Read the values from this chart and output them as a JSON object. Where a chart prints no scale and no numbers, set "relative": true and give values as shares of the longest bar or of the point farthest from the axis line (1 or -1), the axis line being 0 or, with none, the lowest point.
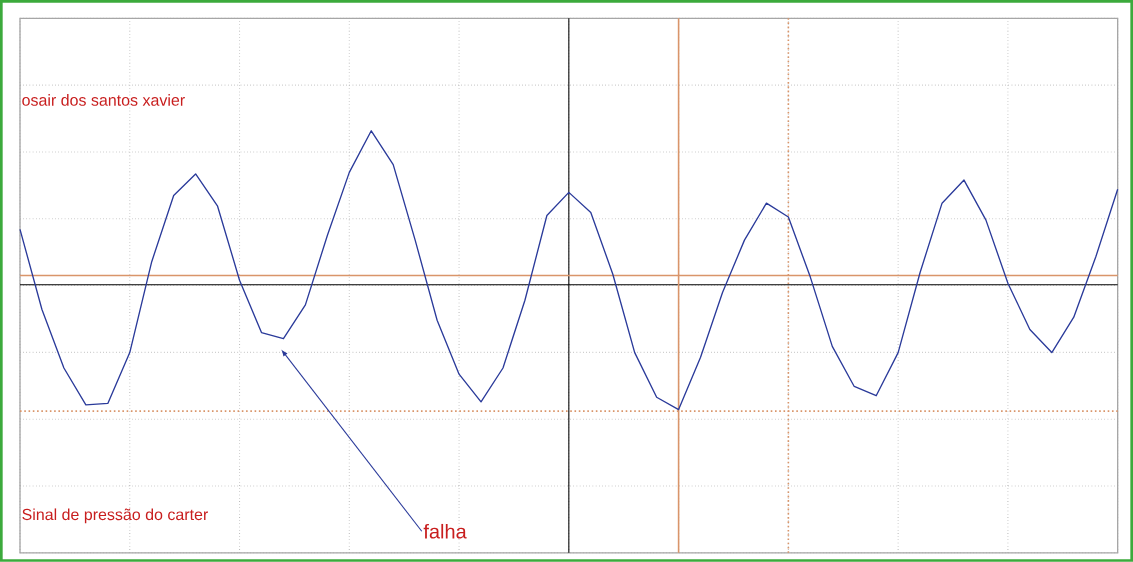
{
  "chart_data": {
    "type": "line",
    "relative": true,
    "categories": [
      null,
      null,
      null,
      null,
      null,
      null,
      null,
      null,
      null,
      null,
      null,
      null,
      null,
      null,
      null,
      null,
      null,
      null,
      null,
      null,
      null,
      null,
      null,
      null,
      null,
      null,
      null,
      null,
      null,
      null,
      null,
      null,
      null,
      null,
      null,
      null,
      null,
      null,
      null,
      null,
      null,
      null,
      null,
      null,
      null,
      null,
      null,
      null,
      null,
      null,
      null
    ],
    "series": [
      {
        "color": "#2a3a9a",
        "values": [
          0.36,
          -0.16,
          -0.54,
          -0.78,
          -0.77,
          -0.44,
          0.15,
          0.58,
          0.72,
          0.51,
          0.03,
          -0.31,
          -0.35,
          -0.13,
          0.32,
          0.73,
          1,
          0.78,
          0.29,
          -0.23,
          -0.58,
          -0.76,
          -0.54,
          -0.1,
          0.45,
          0.6,
          0.47,
          0.07,
          -0.44,
          -0.73,
          -0.81,
          -0.47,
          -0.05,
          0.29,
          0.53,
          0.44,
          0.05,
          -0.4,
          -0.66,
          -0.72,
          -0.44,
          0.08,
          0.53,
          0.68,
          0.42,
          0.01,
          -0.29,
          -0.44,
          -0.21,
          0.18,
          0.62
        ]
      }
    ],
    "ref_lines": [
      {
        "axis": "y",
        "value": 0.06,
        "color": "#d9956a",
        "line_style": "solid"
      },
      {
        "axis": "y",
        "value": -0.82,
        "color": "#d9956a",
        "line_style": "dotted"
      }
    ],
    "annotations": [
      "osair dos santos xavier",
      "Sinal de pressão do carter",
      "falha"
    ],
    "grid": true,
    "marker": "none",
    "line_style": "solid"
  }
}
